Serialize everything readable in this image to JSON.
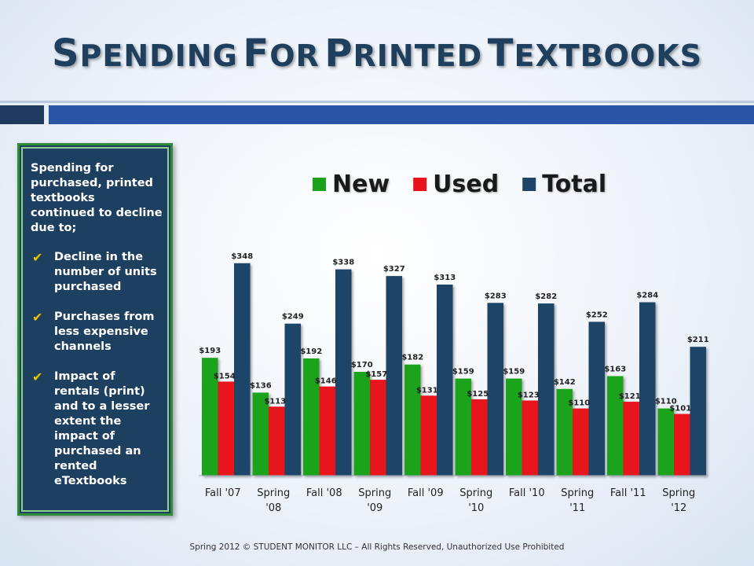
{
  "title": {
    "first_letters": [
      "S",
      "F",
      "P",
      "T"
    ],
    "rests": [
      "PENDING",
      "OR",
      "RINTED",
      "EXTBOOKS"
    ]
  },
  "sidebar": {
    "intro": "Spending for purchased, printed textbooks continued to decline due to;",
    "points": [
      "Decline in the number of units purchased",
      "Purchases from less expensive channels",
      "Impact of rentals (print) and to a lesser extent the impact of purchased an rented eTextbooks"
    ],
    "check_icon": "✔",
    "check_color": "#f2c200"
  },
  "footer": "Spring 2012 © STUDENT  MONITOR LLC – All Rights Reserved, Unauthorized Use Prohibited",
  "chart_data": {
    "type": "bar",
    "categories": [
      [
        "Fall '07"
      ],
      [
        "Spring",
        "'08"
      ],
      [
        "Fall '08"
      ],
      [
        "Spring",
        "'09"
      ],
      [
        "Fall '09"
      ],
      [
        "Spring",
        "'10"
      ],
      [
        "Fall '10"
      ],
      [
        "Spring",
        "'11"
      ],
      [
        "Fall '11"
      ],
      [
        "Spring",
        "'12"
      ]
    ],
    "series": [
      {
        "name": "New",
        "color": "#1aa31a",
        "values": [
          193,
          136,
          192,
          170,
          182,
          159,
          159,
          142,
          163,
          110
        ]
      },
      {
        "name": "Used",
        "color": "#e8121a",
        "values": [
          154,
          113,
          146,
          157,
          131,
          125,
          123,
          110,
          121,
          101
        ]
      },
      {
        "name": "Total",
        "color": "#1f4468",
        "values": [
          348,
          249,
          338,
          327,
          313,
          283,
          282,
          252,
          284,
          211
        ]
      }
    ],
    "value_prefix": "$",
    "legend_position": "top",
    "ylim": [
      0,
      380
    ],
    "grid": false
  }
}
